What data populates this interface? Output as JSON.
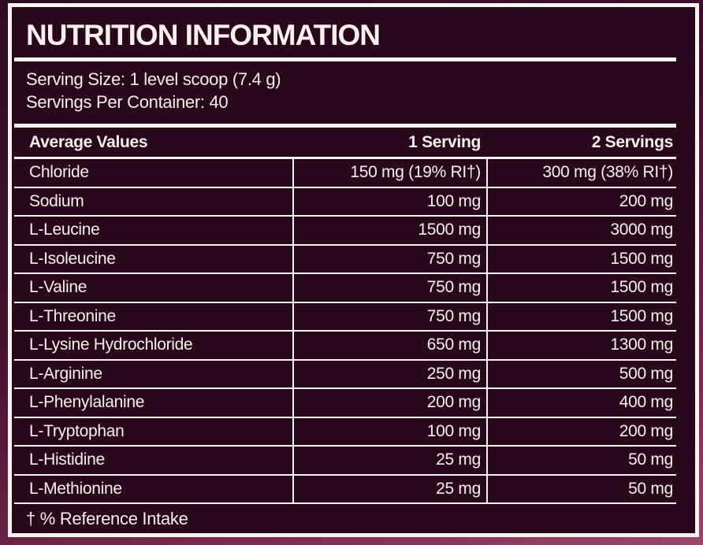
{
  "label": {
    "title": "NUTRITION INFORMATION",
    "serving_size": "Serving Size: 1 level scoop (7.4 g)",
    "servings_per_container": "Servings Per Container: 40",
    "footnote": "† % Reference Intake"
  },
  "table": {
    "headers": [
      "Average Values",
      "1 Serving",
      "2 Servings"
    ],
    "rows": [
      {
        "name": "Chloride",
        "serving1": "150 mg (19% RI†)",
        "serving2": "300 mg (38% RI†)"
      },
      {
        "name": "Sodium",
        "serving1": "100 mg",
        "serving2": "200 mg"
      },
      {
        "name": "L-Leucine",
        "serving1": "1500 mg",
        "serving2": "3000 mg"
      },
      {
        "name": "L-Isoleucine",
        "serving1": "750 mg",
        "serving2": "1500 mg"
      },
      {
        "name": "L-Valine",
        "serving1": "750 mg",
        "serving2": "1500 mg"
      },
      {
        "name": "L-Threonine",
        "serving1": "750 mg",
        "serving2": "1500 mg"
      },
      {
        "name": "L-Lysine Hydrochloride",
        "serving1": "650 mg",
        "serving2": "1300 mg"
      },
      {
        "name": "L-Arginine",
        "serving1": "250 mg",
        "serving2": "500 mg"
      },
      {
        "name": "L-Phenylalanine",
        "serving1": "200 mg",
        "serving2": "400 mg"
      },
      {
        "name": "L-Tryptophan",
        "serving1": "100 mg",
        "serving2": "200 mg"
      },
      {
        "name": "L-Histidine",
        "serving1": "25 mg",
        "serving2": "50 mg"
      },
      {
        "name": "L-Methionine",
        "serving1": "25 mg",
        "serving2": "50 mg"
      }
    ]
  },
  "colors": {
    "background_top": "#2e0a20",
    "background_mid": "#451330",
    "background_low": "#7b2c4f",
    "background_bottom": "#9c4769",
    "label_background": "#28081a",
    "frame_white": "#f8f3ef",
    "text_white": "#f6f0ec"
  }
}
